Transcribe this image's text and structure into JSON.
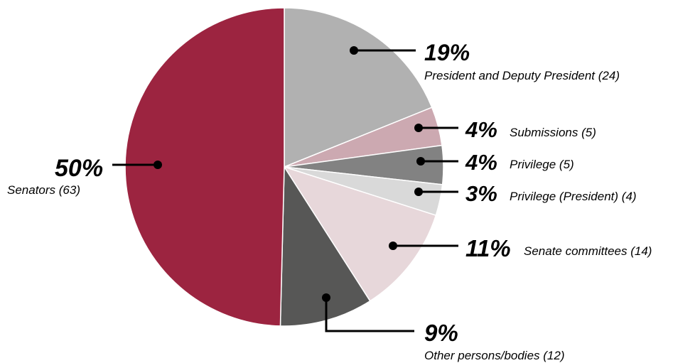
{
  "chart_data": {
    "type": "pie",
    "title": "",
    "start_angle_deg": 0,
    "direction": "clockwise",
    "legend": "none",
    "slices": [
      {
        "label": "President and Deputy President (24)",
        "count": 24,
        "percent_label": "19%",
        "color": "#b1b1b1"
      },
      {
        "label": "Submissions (5)",
        "count": 5,
        "percent_label": "4%",
        "color": "#cca9b1"
      },
      {
        "label": "Privilege (5)",
        "count": 5,
        "percent_label": "4%",
        "color": "#828282"
      },
      {
        "label": "Privilege (President) (4)",
        "count": 4,
        "percent_label": "3%",
        "color": "#d9d9d9"
      },
      {
        "label": "Senate committees (14)",
        "count": 14,
        "percent_label": "11%",
        "color": "#e7d7da"
      },
      {
        "label": "Other persons/bodies (12)",
        "count": 12,
        "percent_label": "9%",
        "color": "#575756"
      },
      {
        "label": "Senators (63)",
        "count": 63,
        "percent_label": "50%",
        "color": "#9c2440"
      }
    ]
  }
}
